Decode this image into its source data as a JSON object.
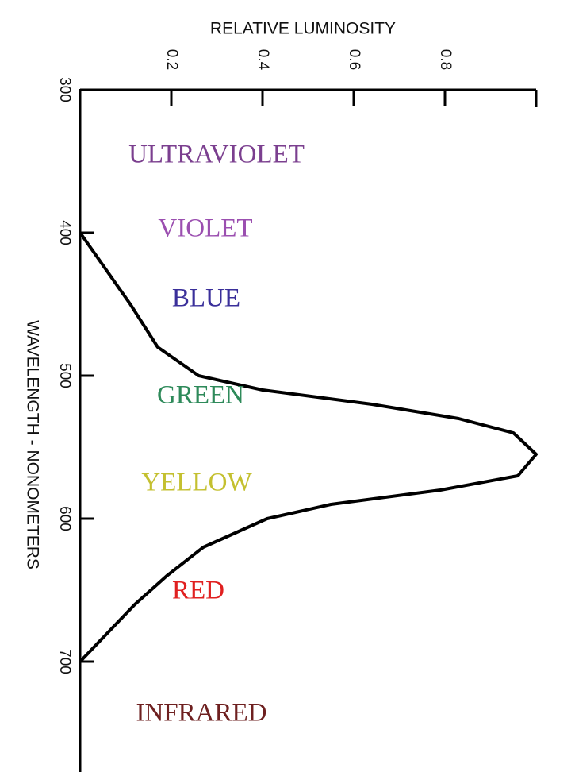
{
  "chart_data": {
    "type": "line",
    "orientation": "rotated",
    "x_label": "WAVELENGTH - NONOMETERS",
    "y_label": "RELATIVE LUMINOSITY",
    "x": [
      400,
      450,
      480,
      500,
      510,
      520,
      530,
      540,
      555,
      570,
      580,
      590,
      600,
      620,
      640,
      660,
      680,
      700
    ],
    "series": [
      {
        "color": "#000000",
        "values": [
          0,
          0.11,
          0.17,
          0.26,
          0.4,
          0.64,
          0.83,
          0.95,
          1.0,
          0.96,
          0.79,
          0.55,
          0.41,
          0.27,
          0.19,
          0.12,
          0.06,
          0
        ]
      }
    ],
    "xlim": [
      300,
      770
    ],
    "xticks": [
      300,
      400,
      500,
      600,
      700
    ],
    "ylim": [
      0,
      1
    ],
    "yticks": [
      0.2,
      0.4,
      0.6,
      0.8
    ],
    "annotations": [
      {
        "text": "ULTRAVIOLET",
        "color": "#7b3f8f"
      },
      {
        "text": "VIOLET",
        "color": "#9b4fb0"
      },
      {
        "text": "BLUE",
        "color": "#3a2f9a"
      },
      {
        "text": "GREEN",
        "color": "#2e8a5a"
      },
      {
        "text": "YELLOW",
        "color": "#c4c030"
      },
      {
        "text": "RED",
        "color": "#e02020"
      },
      {
        "text": "INFRARED",
        "color": "#6e2020"
      }
    ]
  }
}
